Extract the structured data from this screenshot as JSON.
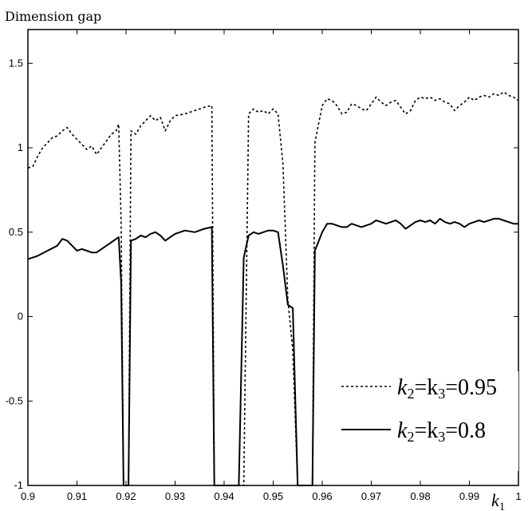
{
  "chart_data": {
    "type": "line",
    "ylabel": "Dimension gap",
    "xlabel": "k1",
    "xlim": [
      0.9,
      1.0
    ],
    "ylim": [
      -1,
      1.7
    ],
    "xticks": [
      "0.9",
      "0.91",
      "0.92",
      "0.93",
      "0.94",
      "0.95",
      "0.96",
      "0.97",
      "0.98",
      "0.99",
      "1"
    ],
    "yticks": [
      "-1",
      "-0.5",
      "0",
      "0.5",
      "1",
      "1.5"
    ],
    "grid": false,
    "legend_position": "bottom-right",
    "series": [
      {
        "name": "k2=k3=0.95",
        "style": "dotted",
        "color": "#000000",
        "points": [
          [
            0.9,
            0.88
          ],
          [
            0.901,
            0.89
          ],
          [
            0.902,
            0.95
          ],
          [
            0.903,
            1.0
          ],
          [
            0.904,
            1.03
          ],
          [
            0.905,
            1.06
          ],
          [
            0.906,
            1.07
          ],
          [
            0.907,
            1.1
          ],
          [
            0.908,
            1.12
          ],
          [
            0.909,
            1.08
          ],
          [
            0.91,
            1.05
          ],
          [
            0.911,
            1.02
          ],
          [
            0.912,
            0.99
          ],
          [
            0.913,
            1.01
          ],
          [
            0.914,
            0.96
          ],
          [
            0.915,
            1.0
          ],
          [
            0.916,
            1.04
          ],
          [
            0.917,
            1.08
          ],
          [
            0.918,
            1.1
          ],
          [
            0.9185,
            1.14
          ],
          [
            0.919,
            0.55
          ],
          [
            0.9195,
            -1.0
          ],
          [
            0.9205,
            -1.0
          ],
          [
            0.921,
            1.1
          ],
          [
            0.922,
            1.08
          ],
          [
            0.923,
            1.13
          ],
          [
            0.924,
            1.16
          ],
          [
            0.925,
            1.19
          ],
          [
            0.926,
            1.16
          ],
          [
            0.927,
            1.18
          ],
          [
            0.928,
            1.1
          ],
          [
            0.929,
            1.16
          ],
          [
            0.93,
            1.19
          ],
          [
            0.932,
            1.2
          ],
          [
            0.934,
            1.22
          ],
          [
            0.936,
            1.24
          ],
          [
            0.9375,
            1.25
          ],
          [
            0.938,
            -1.0
          ],
          [
            0.944,
            -1.0
          ],
          [
            0.945,
            1.2
          ],
          [
            0.946,
            1.23
          ],
          [
            0.947,
            1.21
          ],
          [
            0.948,
            1.22
          ],
          [
            0.949,
            1.2
          ],
          [
            0.95,
            1.23
          ],
          [
            0.951,
            1.2
          ],
          [
            0.952,
            0.9
          ],
          [
            0.953,
            0.1
          ],
          [
            0.954,
            -0.2
          ],
          [
            0.955,
            -1.0
          ],
          [
            0.958,
            -1.0
          ],
          [
            0.9585,
            1.03
          ],
          [
            0.96,
            1.25
          ],
          [
            0.961,
            1.29
          ],
          [
            0.962,
            1.28
          ],
          [
            0.963,
            1.25
          ],
          [
            0.964,
            1.2
          ],
          [
            0.965,
            1.21
          ],
          [
            0.966,
            1.26
          ],
          [
            0.967,
            1.25
          ],
          [
            0.968,
            1.23
          ],
          [
            0.969,
            1.22
          ],
          [
            0.97,
            1.26
          ],
          [
            0.971,
            1.3
          ],
          [
            0.972,
            1.27
          ],
          [
            0.973,
            1.25
          ],
          [
            0.974,
            1.27
          ],
          [
            0.975,
            1.28
          ],
          [
            0.976,
            1.24
          ],
          [
            0.977,
            1.2
          ],
          [
            0.978,
            1.22
          ],
          [
            0.979,
            1.28
          ],
          [
            0.98,
            1.3
          ],
          [
            0.981,
            1.29
          ],
          [
            0.982,
            1.3
          ],
          [
            0.983,
            1.28
          ],
          [
            0.984,
            1.29
          ],
          [
            0.985,
            1.27
          ],
          [
            0.986,
            1.26
          ],
          [
            0.987,
            1.22
          ],
          [
            0.988,
            1.25
          ],
          [
            0.989,
            1.27
          ],
          [
            0.99,
            1.3
          ],
          [
            0.991,
            1.28
          ],
          [
            0.992,
            1.3
          ],
          [
            0.993,
            1.31
          ],
          [
            0.994,
            1.3
          ],
          [
            0.995,
            1.32
          ],
          [
            0.996,
            1.31
          ],
          [
            0.997,
            1.33
          ],
          [
            0.998,
            1.31
          ],
          [
            0.999,
            1.3
          ],
          [
            1.0,
            1.28
          ]
        ]
      },
      {
        "name": "k2=k3=0.8",
        "style": "solid",
        "color": "#000000",
        "points": [
          [
            0.9,
            0.34
          ],
          [
            0.902,
            0.36
          ],
          [
            0.904,
            0.39
          ],
          [
            0.906,
            0.42
          ],
          [
            0.907,
            0.46
          ],
          [
            0.908,
            0.45
          ],
          [
            0.909,
            0.42
          ],
          [
            0.91,
            0.39
          ],
          [
            0.911,
            0.4
          ],
          [
            0.912,
            0.39
          ],
          [
            0.913,
            0.38
          ],
          [
            0.914,
            0.38
          ],
          [
            0.915,
            0.4
          ],
          [
            0.916,
            0.42
          ],
          [
            0.917,
            0.44
          ],
          [
            0.918,
            0.46
          ],
          [
            0.9185,
            0.47
          ],
          [
            0.919,
            0.2
          ],
          [
            0.9195,
            -1.0
          ],
          [
            0.9205,
            -1.0
          ],
          [
            0.921,
            0.45
          ],
          [
            0.922,
            0.46
          ],
          [
            0.923,
            0.48
          ],
          [
            0.924,
            0.47
          ],
          [
            0.925,
            0.49
          ],
          [
            0.926,
            0.5
          ],
          [
            0.927,
            0.48
          ],
          [
            0.928,
            0.45
          ],
          [
            0.929,
            0.47
          ],
          [
            0.93,
            0.49
          ],
          [
            0.931,
            0.5
          ],
          [
            0.932,
            0.51
          ],
          [
            0.934,
            0.5
          ],
          [
            0.936,
            0.52
          ],
          [
            0.9375,
            0.53
          ],
          [
            0.938,
            -1.0
          ],
          [
            0.943,
            -1.0
          ],
          [
            0.944,
            0.35
          ],
          [
            0.945,
            0.48
          ],
          [
            0.946,
            0.5
          ],
          [
            0.947,
            0.49
          ],
          [
            0.948,
            0.5
          ],
          [
            0.949,
            0.51
          ],
          [
            0.95,
            0.51
          ],
          [
            0.951,
            0.5
          ],
          [
            0.952,
            0.3
          ],
          [
            0.953,
            0.07
          ],
          [
            0.954,
            0.05
          ],
          [
            0.955,
            -1.0
          ],
          [
            0.958,
            -1.0
          ],
          [
            0.9585,
            0.39
          ],
          [
            0.96,
            0.5
          ],
          [
            0.961,
            0.55
          ],
          [
            0.962,
            0.55
          ],
          [
            0.963,
            0.54
          ],
          [
            0.964,
            0.53
          ],
          [
            0.965,
            0.53
          ],
          [
            0.966,
            0.55
          ],
          [
            0.967,
            0.54
          ],
          [
            0.968,
            0.53
          ],
          [
            0.969,
            0.54
          ],
          [
            0.97,
            0.55
          ],
          [
            0.971,
            0.57
          ],
          [
            0.972,
            0.56
          ],
          [
            0.973,
            0.55
          ],
          [
            0.974,
            0.56
          ],
          [
            0.975,
            0.57
          ],
          [
            0.976,
            0.55
          ],
          [
            0.977,
            0.52
          ],
          [
            0.978,
            0.54
          ],
          [
            0.979,
            0.56
          ],
          [
            0.98,
            0.57
          ],
          [
            0.981,
            0.56
          ],
          [
            0.982,
            0.57
          ],
          [
            0.983,
            0.55
          ],
          [
            0.984,
            0.58
          ],
          [
            0.985,
            0.56
          ],
          [
            0.986,
            0.55
          ],
          [
            0.987,
            0.56
          ],
          [
            0.988,
            0.55
          ],
          [
            0.989,
            0.53
          ],
          [
            0.99,
            0.55
          ],
          [
            0.991,
            0.56
          ],
          [
            0.992,
            0.57
          ],
          [
            0.993,
            0.56
          ],
          [
            0.994,
            0.57
          ],
          [
            0.995,
            0.58
          ],
          [
            0.996,
            0.58
          ],
          [
            0.997,
            0.57
          ],
          [
            0.998,
            0.56
          ],
          [
            0.999,
            0.55
          ],
          [
            1.0,
            0.55
          ]
        ]
      }
    ]
  },
  "legend": {
    "entries": [
      {
        "label_main": "k",
        "sub1": "2",
        "mid": "=k",
        "sub2": "3",
        "value": "=0.95"
      },
      {
        "label_main": "k",
        "sub1": "2",
        "mid": "=k",
        "sub2": "3",
        "value": "=0.8"
      }
    ]
  },
  "xlabel_parts": {
    "main": "k",
    "sub": "1"
  }
}
